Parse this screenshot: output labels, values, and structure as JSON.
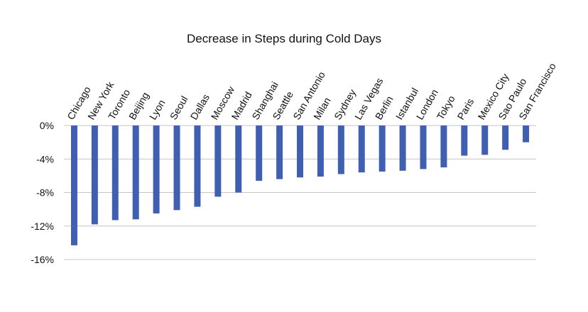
{
  "chart_data": {
    "type": "bar",
    "title": "Decrease in Steps during Cold Days",
    "xlabel": "",
    "ylabel": "",
    "categories": [
      "Chicago",
      "New York",
      "Toronto",
      "Beijing",
      "Lyon",
      "Seoul",
      "Dallas",
      "Moscow",
      "Madrid",
      "Shanghai",
      "Seattle",
      "San Antonio",
      "Milan",
      "Sydney",
      "Las Vegas",
      "Berlin",
      "Istanbul",
      "London",
      "Tokyo",
      "Paris",
      "Mexico City",
      "Sao Paulo",
      "San Francisco"
    ],
    "values": [
      -14.3,
      -11.8,
      -11.3,
      -11.2,
      -10.5,
      -10.1,
      -9.7,
      -8.5,
      -8.0,
      -6.6,
      -6.4,
      -6.2,
      -6.1,
      -5.8,
      -5.6,
      -5.5,
      -5.4,
      -5.2,
      -5.0,
      -3.6,
      -3.5,
      -2.9,
      -2.0
    ],
    "ylim": [
      -16,
      0
    ],
    "yticks": [
      0,
      -4,
      -8,
      -12,
      -16
    ],
    "ytick_labels": [
      "0%",
      "-4%",
      "-8%",
      "-12%",
      "-16%"
    ],
    "grid": true,
    "legend": "none",
    "bar_color": "#3f5fb0",
    "grid_color": "#c4c4c4"
  }
}
